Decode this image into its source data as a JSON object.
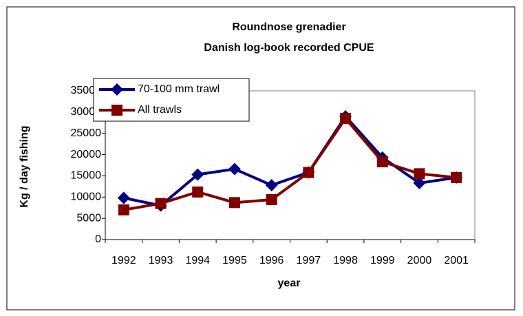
{
  "chart_data": {
    "type": "line",
    "title": "Roundnose grenadier",
    "subtitle": "Danish log-book recorded CPUE",
    "x_label": "year",
    "y_label": "Kg / day fishing",
    "categories": [
      "1992",
      "1993",
      "1994",
      "1995",
      "1996",
      "1997",
      "1998",
      "1999",
      "2000",
      "2001"
    ],
    "series": [
      {
        "name": "70-100 mm trawl",
        "color": "#000080",
        "marker": "diamond",
        "values": [
          9800,
          8000,
          15300,
          16600,
          12800,
          15800,
          29000,
          19300,
          13300,
          14600
        ]
      },
      {
        "name": "All trawls",
        "color": "#800000",
        "marker": "square",
        "values": [
          7000,
          8500,
          11200,
          8700,
          9400,
          15800,
          28500,
          18300,
          15500,
          14600
        ]
      }
    ],
    "ylim": [
      0,
      35000
    ],
    "yticks": [
      0,
      5000,
      10000,
      15000,
      20000,
      25000,
      30000,
      35000
    ],
    "grid": false,
    "legend": "upper left"
  }
}
